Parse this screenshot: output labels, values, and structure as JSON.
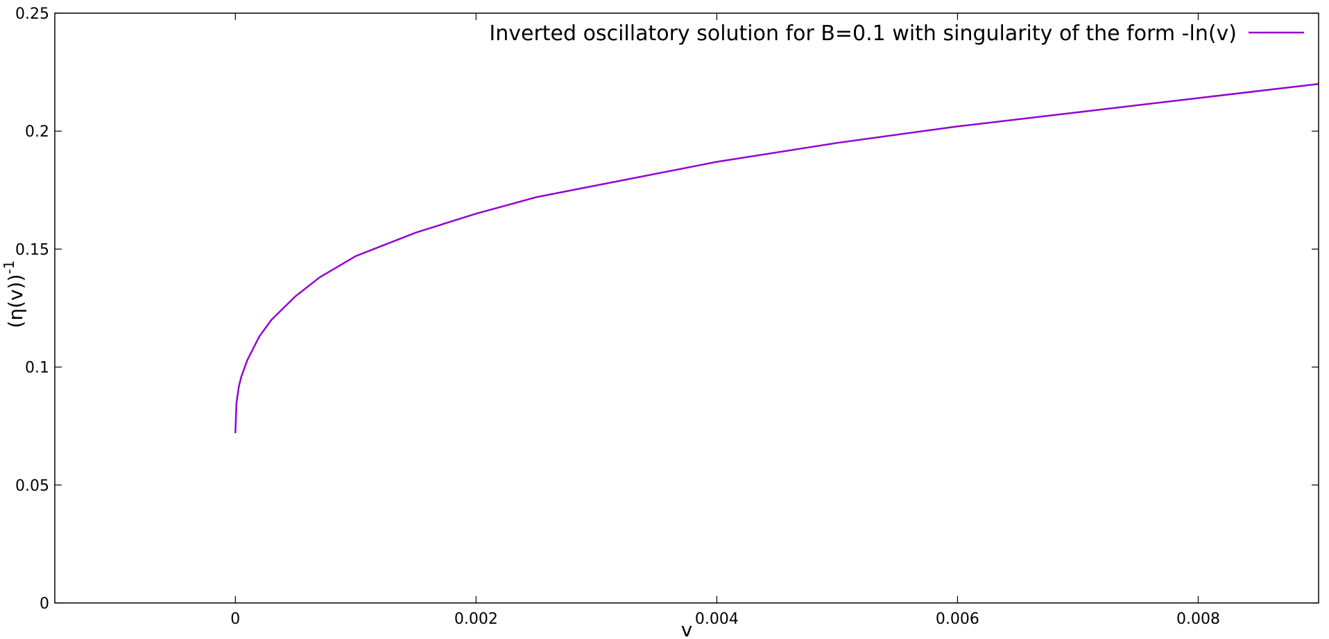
{
  "chart_data": {
    "type": "line",
    "title": "",
    "xlabel": "v",
    "ylabel": "(η(v))",
    "ylabel_superscript": "-1",
    "xlim": [
      -0.0015,
      0.009
    ],
    "ylim": [
      0,
      0.25
    ],
    "x_ticks": [
      0,
      0.002,
      0.004,
      0.006,
      0.008
    ],
    "x_tick_labels": [
      "0",
      "0.002",
      "0.004",
      "0.006",
      "0.008"
    ],
    "y_ticks": [
      0,
      0.05,
      0.1,
      0.15,
      0.2,
      0.25
    ],
    "y_tick_labels": [
      "0",
      "0.05",
      "0.1",
      "0.15",
      "0.2",
      "0.25"
    ],
    "grid": false,
    "legend_position": "top-right",
    "series": [
      {
        "name": "Inverted oscillatory solution for B=0.1 with singularity of the form -ln(v)",
        "color": "#9400d3",
        "x": [
          0,
          1e-05,
          3e-05,
          5e-05,
          0.0001,
          0.0002,
          0.0003,
          0.0005,
          0.0007,
          0.001,
          0.0015,
          0.002,
          0.0025,
          0.003,
          0.004,
          0.005,
          0.006,
          0.007,
          0.008,
          0.009
        ],
        "y": [
          0.072,
          0.085,
          0.092,
          0.096,
          0.103,
          0.113,
          0.12,
          0.13,
          0.138,
          0.147,
          0.157,
          0.165,
          0.172,
          0.177,
          0.187,
          0.195,
          0.202,
          0.208,
          0.214,
          0.22
        ]
      }
    ]
  }
}
